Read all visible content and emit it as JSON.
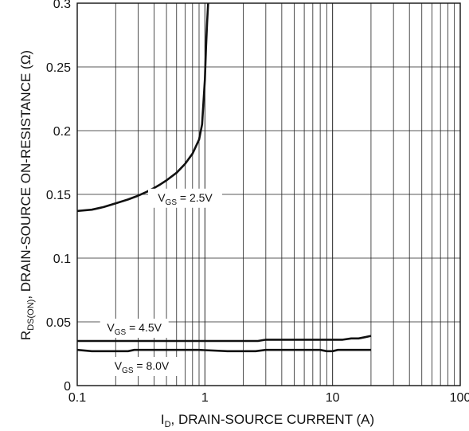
{
  "chart_data": {
    "type": "line",
    "title": "",
    "xlabel": {
      "main": "I",
      "sub": "D",
      "rest": ", DRAIN-SOURCE CURRENT (A)"
    },
    "ylabel": {
      "main": "R",
      "sub": "DS(ON)",
      "rest": ", DRAIN-SOURCE ON-RESISTANCE (Ω)"
    },
    "x_scale": "log",
    "xlim": [
      0.1,
      100
    ],
    "ylim": [
      0,
      0.3
    ],
    "x_ticks": [
      0.1,
      1,
      10,
      100
    ],
    "x_tick_labels": [
      "0.1",
      "1",
      "10",
      "100"
    ],
    "y_ticks": [
      0,
      0.05,
      0.1,
      0.15,
      0.2,
      0.25,
      0.3
    ],
    "y_tick_labels": [
      "0",
      "0.05",
      "0.1",
      "0.15",
      "0.2",
      "0.25",
      "0.3"
    ],
    "grid": true,
    "colors": {
      "line": "#111111",
      "grid": "#222222",
      "background": "#ffffff"
    },
    "series": [
      {
        "name": "VGS = 2.5V",
        "label": {
          "main": "V",
          "sub": "GS",
          "rest": " = 2.5V"
        },
        "x": [
          0.1,
          0.13,
          0.16,
          0.2,
          0.25,
          0.3,
          0.35,
          0.4,
          0.45,
          0.5,
          0.6,
          0.7,
          0.8,
          0.9,
          0.95,
          1.0,
          1.02,
          1.04,
          1.06
        ],
        "y": [
          0.137,
          0.138,
          0.14,
          0.143,
          0.146,
          0.149,
          0.152,
          0.155,
          0.158,
          0.161,
          0.167,
          0.174,
          0.182,
          0.193,
          0.205,
          0.24,
          0.265,
          0.285,
          0.3
        ]
      },
      {
        "name": "VGS = 4.5V",
        "label": {
          "main": "V",
          "sub": "GS",
          "rest": " = 4.5V"
        },
        "x": [
          0.1,
          0.5,
          1,
          2,
          2.6,
          3,
          5,
          8,
          10,
          12,
          14,
          16,
          18,
          20
        ],
        "y": [
          0.035,
          0.035,
          0.035,
          0.035,
          0.035,
          0.036,
          0.036,
          0.036,
          0.036,
          0.036,
          0.037,
          0.037,
          0.038,
          0.039
        ]
      },
      {
        "name": "VGS = 8.0V",
        "label": {
          "main": "V",
          "sub": "GS",
          "rest": " = 8.0V"
        },
        "x": [
          0.1,
          0.13,
          0.25,
          0.28,
          0.7,
          0.9,
          1.5,
          2.5,
          3,
          5,
          8,
          9,
          10,
          11,
          20
        ],
        "y": [
          0.028,
          0.027,
          0.027,
          0.028,
          0.028,
          0.028,
          0.027,
          0.027,
          0.028,
          0.028,
          0.028,
          0.027,
          0.027,
          0.028,
          0.028
        ]
      }
    ]
  }
}
